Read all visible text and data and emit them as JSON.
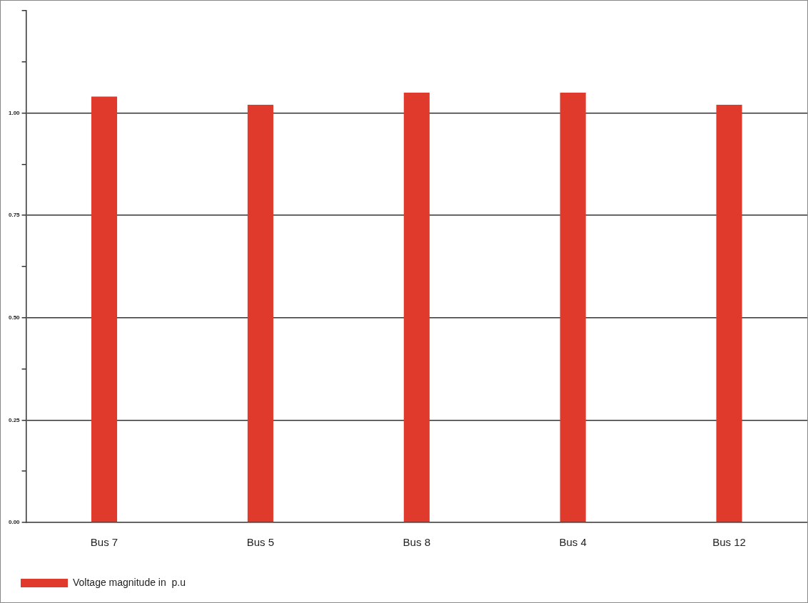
{
  "chart_data": {
    "type": "bar",
    "categories": [
      "Bus 7",
      "Bus 5",
      "Bus 8",
      "Bus 4",
      "Bus 12"
    ],
    "series": [
      {
        "name": "Voltage magnitude in  p.u",
        "color": "#e03a2c",
        "values": [
          1.04,
          1.02,
          1.05,
          1.05,
          1.02
        ]
      }
    ],
    "ylim": [
      0,
      1.25
    ],
    "yticks": [
      {
        "value": 0,
        "label": "0.00"
      },
      {
        "value": 0.125,
        "label": null
      },
      {
        "value": 0.25,
        "label": "0.25"
      },
      {
        "value": 0.375,
        "label": null
      },
      {
        "value": 0.5,
        "label": "0.50"
      },
      {
        "value": 0.625,
        "label": null
      },
      {
        "value": 0.75,
        "label": "0.75"
      },
      {
        "value": 0.875,
        "label": null
      },
      {
        "value": 1,
        "label": "1.00"
      },
      {
        "value": 1.125,
        "label": null
      },
      {
        "value": 1.25,
        "label": null
      }
    ],
    "grid": "y",
    "legend": "bottom left"
  }
}
